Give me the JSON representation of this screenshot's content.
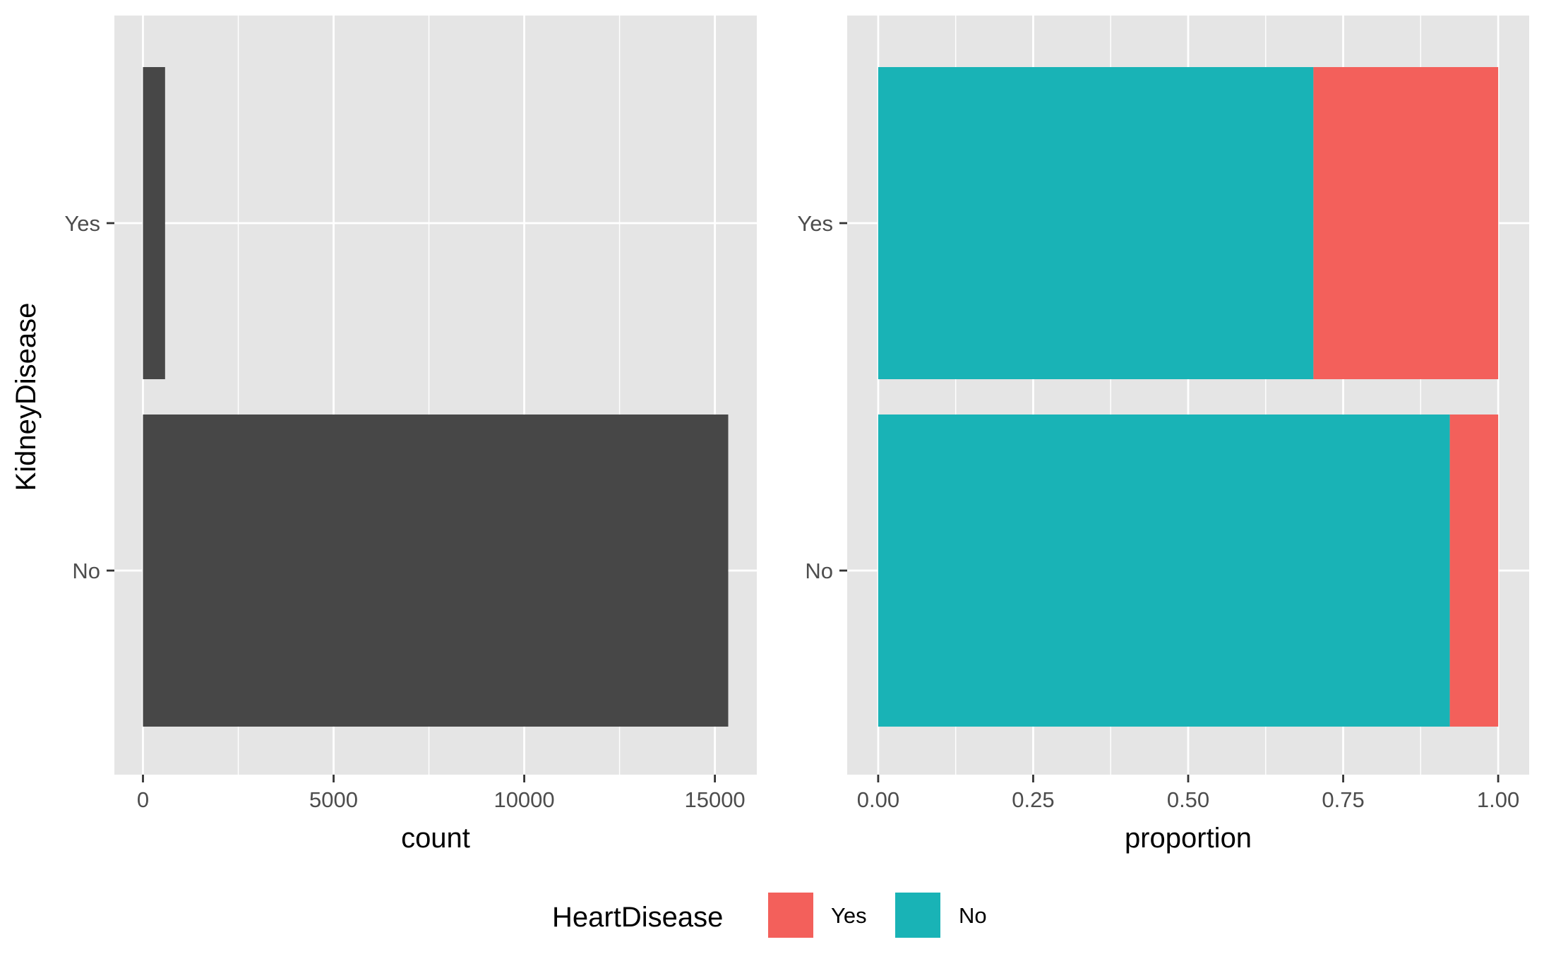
{
  "chart_data": [
    {
      "type": "bar",
      "orientation": "horizontal",
      "ylabel": "KidneyDisease",
      "xlabel": "count",
      "categories": [
        "No",
        "Yes"
      ],
      "values": [
        15350,
        580
      ],
      "xlim": [
        -750,
        16100
      ],
      "xticks": [
        0,
        5000,
        10000,
        15000
      ],
      "xtick_labels": [
        "0",
        "5000",
        "10000",
        "15000"
      ],
      "bar_color": "#474747",
      "grid": true
    },
    {
      "type": "bar",
      "orientation": "horizontal",
      "stacked": true,
      "xlabel": "proportion",
      "categories": [
        "No",
        "Yes"
      ],
      "series": [
        {
          "name": "No",
          "values": [
            0.922,
            0.702
          ],
          "color": "#19B3B6"
        },
        {
          "name": "Yes",
          "values": [
            0.078,
            0.298
          ],
          "color": "#F3605B"
        }
      ],
      "xlim": [
        -0.05,
        1.05
      ],
      "xticks": [
        0,
        0.25,
        0.5,
        0.75,
        1
      ],
      "xtick_labels": [
        "0.00",
        "0.25",
        "0.50",
        "0.75",
        "1.00"
      ],
      "grid": true
    }
  ],
  "legend": {
    "title": "HeartDisease",
    "placement": "bottom",
    "items": [
      {
        "label": "Yes",
        "color": "#F3605B"
      },
      {
        "label": "No",
        "color": "#19B3B6"
      }
    ]
  },
  "panel_background": "#E5E5E5",
  "grid_color": "#FFFFFF"
}
